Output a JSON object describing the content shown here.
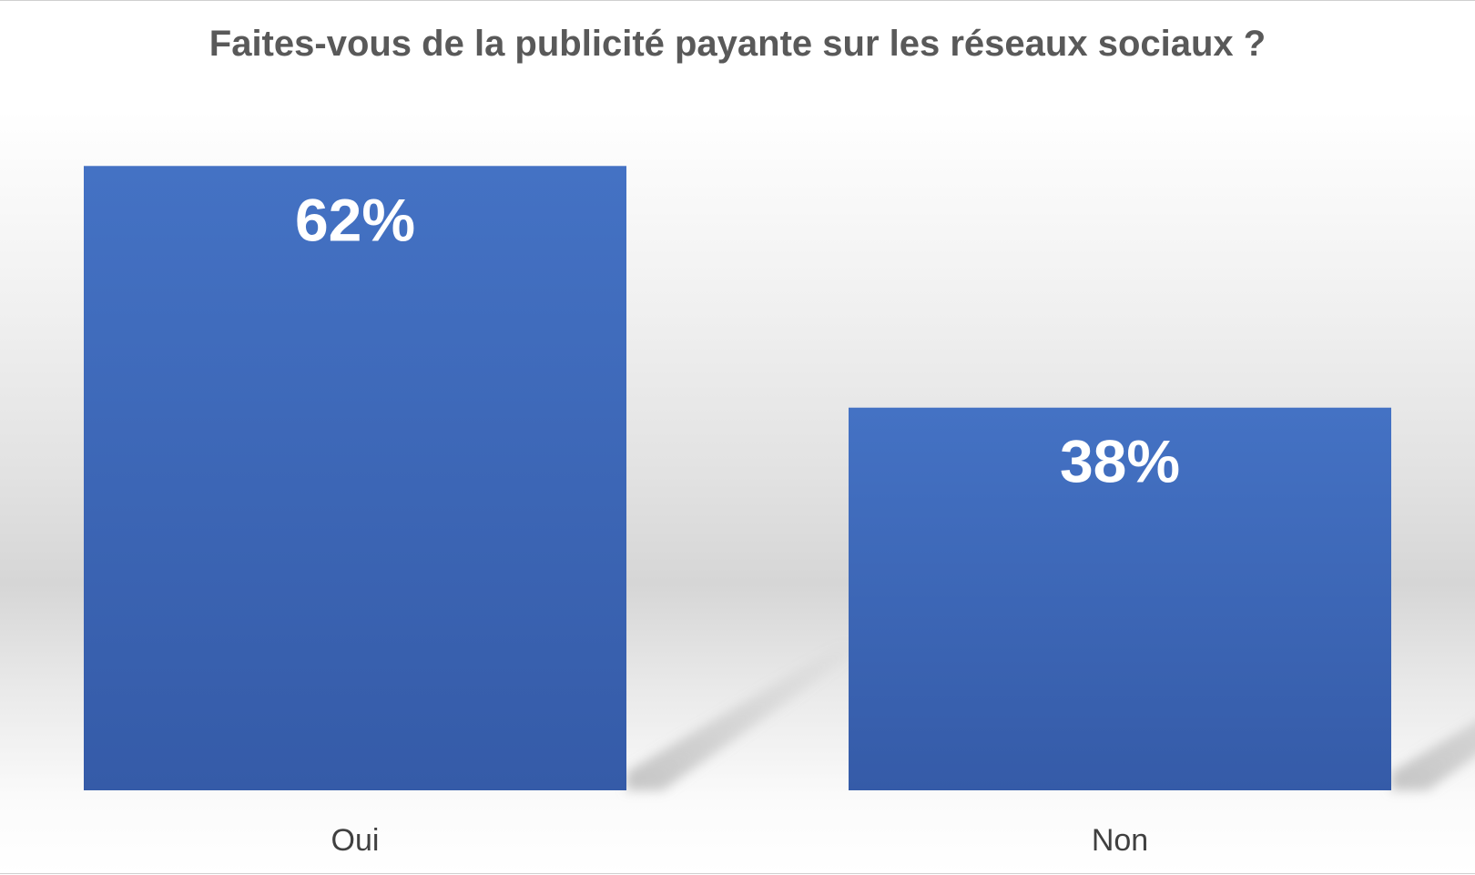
{
  "chart_data": {
    "type": "bar",
    "title": "Faites-vous de la publicité payante sur les réseaux sociaux ?",
    "categories": [
      "Oui",
      "Non"
    ],
    "values": [
      62,
      38
    ],
    "value_labels": [
      "62%",
      "38%"
    ],
    "unit": "%",
    "ylim": [
      0,
      100
    ],
    "grid": false,
    "legend": "none",
    "colors": {
      "bar_top": "#4472C4",
      "bar_bottom": "#355BA8",
      "title": "#595959",
      "category_label": "#404040",
      "value_label": "#FFFFFF",
      "shadow": "#9A9A9A"
    }
  }
}
